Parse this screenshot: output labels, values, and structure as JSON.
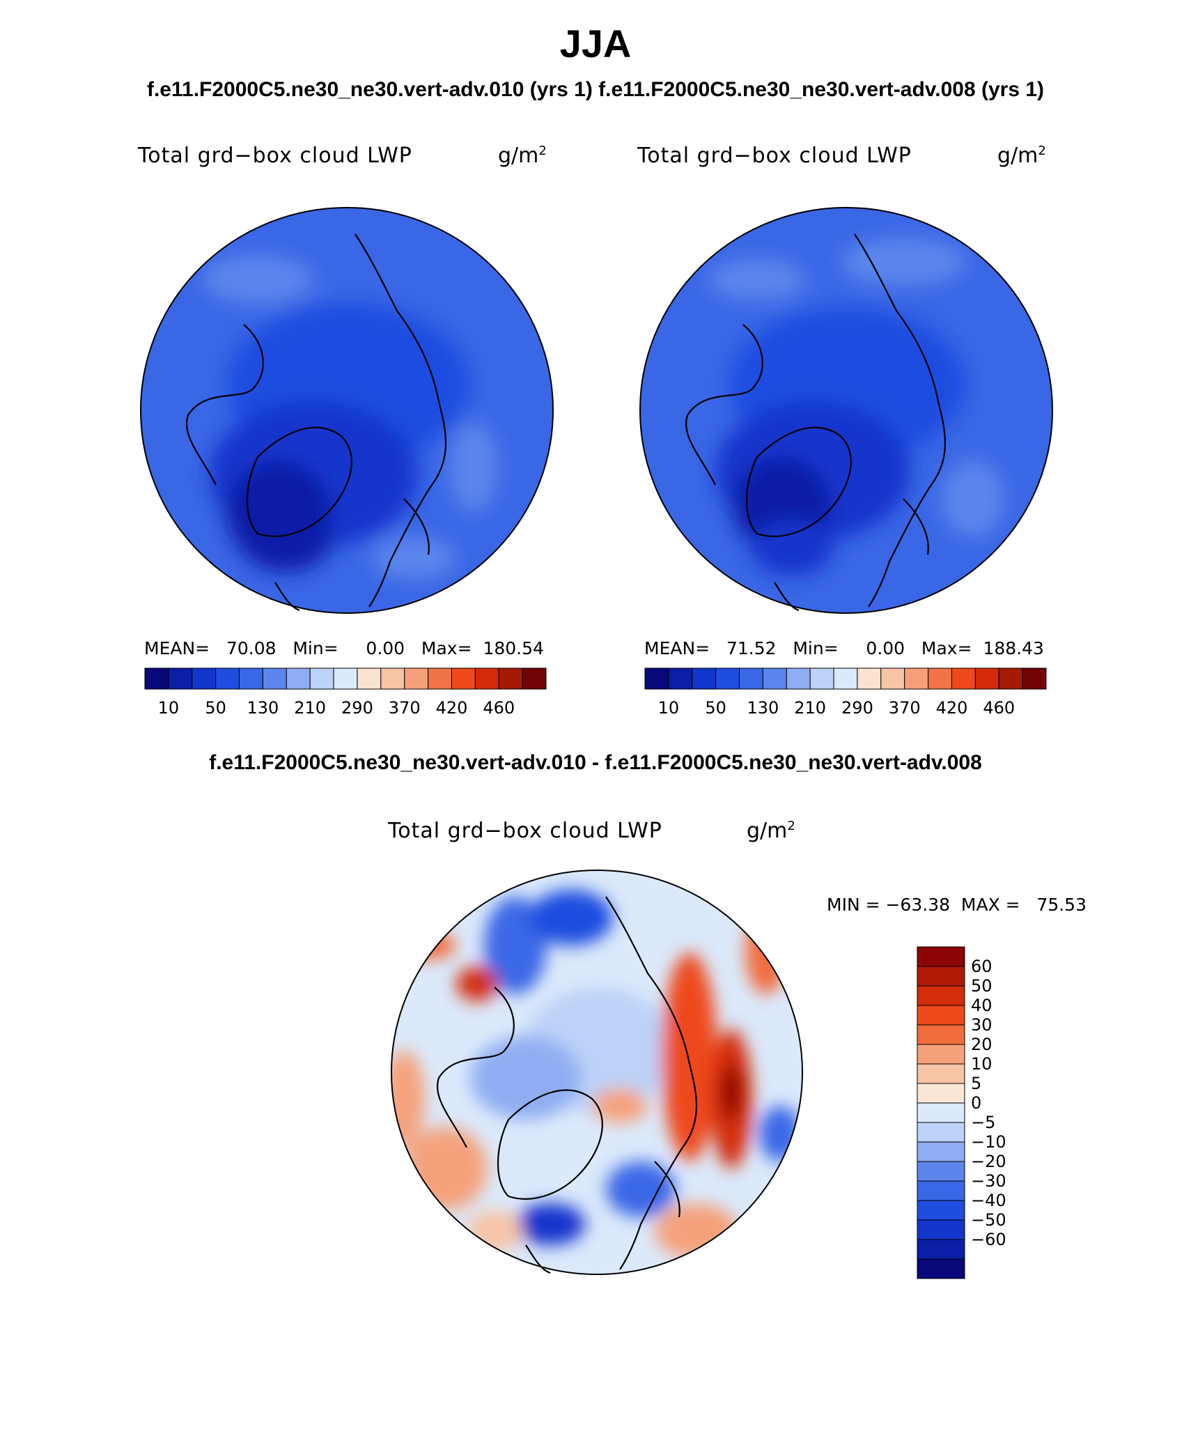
{
  "header": {
    "title": "JJA",
    "subtitle": "f.e11.F2000C5.ne30_ne30.vert-adv.010 (yrs 1)  f.e11.F2000C5.ne30_ne30.vert-adv.008 (yrs 1)",
    "diff_title": "f.e11.F2000C5.ne30_ne30.vert-adv.010 - f.e11.F2000C5.ne30_ne30.vert-adv.008"
  },
  "panels": [
    {
      "variable": "Total grd−box cloud LWP",
      "units_base": "g/m",
      "units_exp": "2",
      "stats": "MEAN=   70.08   Min=     0.00   Max=  180.54"
    },
    {
      "variable": "Total grd−box cloud LWP",
      "units_base": "g/m",
      "units_exp": "2",
      "stats": "MEAN=   71.52   Min=     0.00   Max=  188.43"
    }
  ],
  "diff_panel": {
    "variable": "Total grd−box cloud LWP",
    "units_base": "g/m",
    "units_exp": "2",
    "stats": "MIN = −63.38  MAX =   75.53"
  },
  "colorbar_horizontal": {
    "colors": [
      "#08087a",
      "#0a1fa6",
      "#1235cc",
      "#1f4de0",
      "#3a67e6",
      "#5c86ec",
      "#8fadf2",
      "#bcd2f8",
      "#dbe9fb",
      "#fbe3d2",
      "#f8c4a6",
      "#f5a07a",
      "#f17448",
      "#ee4a1c",
      "#d42a0a",
      "#a51a06",
      "#720404"
    ],
    "labels": [
      "10",
      "50",
      "130",
      "210",
      "290",
      "370",
      "420",
      "460"
    ]
  },
  "colorbar_vertical": {
    "colors": [
      "#8c0606",
      "#b01a06",
      "#d42d0a",
      "#ee4a1c",
      "#f26d3c",
      "#f5a27c",
      "#f8c4a6",
      "#fbe6d5",
      "#dbe9fb",
      "#bcd2f8",
      "#8fadf2",
      "#5c86ec",
      "#3a67e6",
      "#1f4de0",
      "#1235cc",
      "#0a1fa6",
      "#08087a"
    ],
    "labels": [
      "60",
      "50",
      "40",
      "30",
      "20",
      "10",
      "5",
      "0",
      "−5",
      "−10",
      "−20",
      "−30",
      "−40",
      "−50",
      "−60"
    ]
  }
}
